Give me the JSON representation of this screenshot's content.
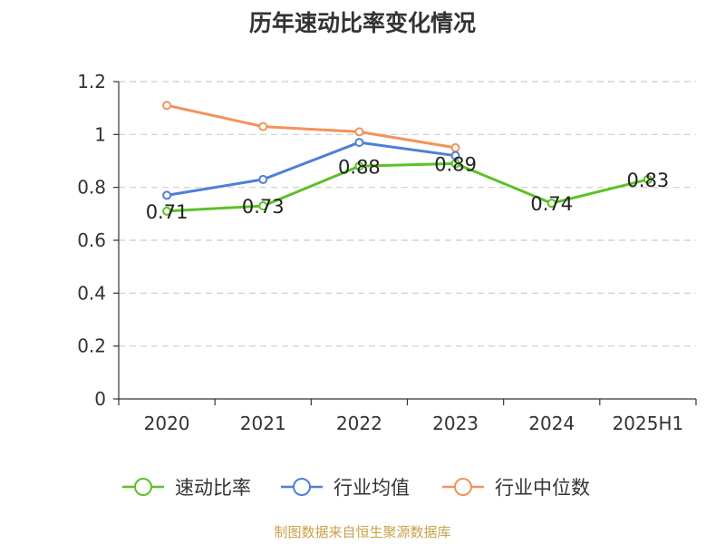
{
  "chart_data": {
    "type": "line",
    "title": "历年速动比率变化情况",
    "categories": [
      "2020",
      "2021",
      "2022",
      "2023",
      "2024",
      "2025H1"
    ],
    "yticks": [
      "0",
      "0.2",
      "0.4",
      "0.6",
      "0.8",
      "1",
      "1.2"
    ],
    "ylim": [
      0,
      1.2
    ],
    "grid": true,
    "legend_position": "bottom",
    "series": [
      {
        "name": "速动比率",
        "color": "#5cc127",
        "values": [
          0.71,
          0.73,
          0.88,
          0.89,
          0.74,
          0.83
        ],
        "labels": [
          "0.71",
          "0.73",
          "0.88",
          "0.89",
          "0.74",
          "0.83"
        ]
      },
      {
        "name": "行业均值",
        "color": "#4f7fd6",
        "values": [
          0.77,
          0.83,
          0.97,
          0.92,
          null,
          null
        ]
      },
      {
        "name": "行业中位数",
        "color": "#f4925a",
        "values": [
          1.11,
          1.03,
          1.01,
          0.95,
          null,
          null
        ]
      }
    ]
  },
  "source_text": "制图数据来自恒生聚源数据库"
}
